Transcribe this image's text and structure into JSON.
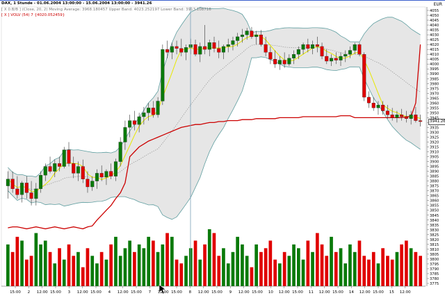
{
  "title_line": "DAX, 1 Stunde - 01.06.2004 13:00:00 - 15.06.2004 13:00:00 - 3941.26",
  "indicator_line": "[ X 0.B/B ] (Close, 20, 2) Moving Average: 3968.180457 Upper Band: 4023.252197 Lower Band: 3913.108716",
  "volume_line": "[ X ] VOLV (54) 7 {4020.052459}",
  "currency": "EUR",
  "last_price_label": "3941.26",
  "colors": {
    "up": "#0a7a0a",
    "down": "#e00000",
    "band_fill": "#e6e6e6",
    "band_edge": "#5f9ea0",
    "ma": "#e8e800",
    "mid": "#8a8a8a",
    "volume_line": "#cc0000",
    "cursor": "#7aa0b8",
    "grid": "#b0b0b0"
  },
  "y_axis": {
    "ticks": [
      "4055",
      "4050",
      "4045",
      "4040",
      "4035",
      "4030",
      "4025",
      "4020",
      "4015",
      "4010",
      "4005",
      "4000",
      "3995",
      "3990",
      "3985",
      "3980",
      "3975",
      "3970",
      "3965",
      "3960",
      "3955",
      "3950",
      "3945",
      "3940",
      "3935",
      "3930",
      "3925",
      "3920",
      "3915",
      "3910",
      "3905",
      "3900",
      "3895",
      "3890",
      "3885",
      "3880",
      "3875",
      "3870",
      "3865",
      "3860",
      "3855",
      "3850",
      "3845",
      "3840",
      "3835",
      "3830",
      "3825",
      "3820",
      "3815",
      "3810",
      "3805",
      "3800",
      "3795",
      "3790",
      "3785",
      "3780",
      "3775"
    ],
    "min": 3775,
    "max": 4055
  },
  "x_axis": {
    "labels": [
      "15:00",
      "2",
      "12:00",
      "15:00",
      "3",
      "12:00",
      "15:00",
      "4",
      "12:00",
      "15:00",
      "7",
      "12:00",
      "15:00",
      "8",
      "12:00",
      "15:00",
      "9",
      "12:00",
      "15:00",
      "10",
      "12:00",
      "15:00",
      "11",
      "12:00",
      "15:00",
      "14",
      "12:00",
      "15:00",
      "15",
      "12:00"
    ]
  },
  "chart_data": {
    "type": "candlestick",
    "title": "DAX, 1 Stunde - 01.06.2004 13:00:00 - 15.06.2004 13:00:00 - 3941.26",
    "candles": [
      {
        "o": 3875,
        "h": 3890,
        "l": 3862,
        "c": 3882
      },
      {
        "o": 3882,
        "h": 3890,
        "l": 3868,
        "c": 3872
      },
      {
        "o": 3872,
        "h": 3885,
        "l": 3862,
        "c": 3866
      },
      {
        "o": 3866,
        "h": 3880,
        "l": 3858,
        "c": 3878
      },
      {
        "o": 3878,
        "h": 3885,
        "l": 3862,
        "c": 3868
      },
      {
        "o": 3868,
        "h": 3880,
        "l": 3855,
        "c": 3862
      },
      {
        "o": 3862,
        "h": 3878,
        "l": 3855,
        "c": 3872
      },
      {
        "o": 3872,
        "h": 3890,
        "l": 3868,
        "c": 3886
      },
      {
        "o": 3886,
        "h": 3898,
        "l": 3880,
        "c": 3895
      },
      {
        "o": 3895,
        "h": 3905,
        "l": 3888,
        "c": 3890
      },
      {
        "o": 3890,
        "h": 3902,
        "l": 3884,
        "c": 3898
      },
      {
        "o": 3898,
        "h": 3905,
        "l": 3890,
        "c": 3895
      },
      {
        "o": 3895,
        "h": 3915,
        "l": 3893,
        "c": 3912
      },
      {
        "o": 3912,
        "h": 3920,
        "l": 3895,
        "c": 3898
      },
      {
        "o": 3898,
        "h": 3905,
        "l": 3883,
        "c": 3888
      },
      {
        "o": 3888,
        "h": 3900,
        "l": 3880,
        "c": 3895
      },
      {
        "o": 3895,
        "h": 3902,
        "l": 3878,
        "c": 3882
      },
      {
        "o": 3882,
        "h": 3890,
        "l": 3868,
        "c": 3874
      },
      {
        "o": 3874,
        "h": 3885,
        "l": 3870,
        "c": 3880
      },
      {
        "o": 3880,
        "h": 3892,
        "l": 3872,
        "c": 3888
      },
      {
        "o": 3888,
        "h": 3896,
        "l": 3880,
        "c": 3884
      },
      {
        "o": 3884,
        "h": 3892,
        "l": 3876,
        "c": 3890
      },
      {
        "o": 3890,
        "h": 3898,
        "l": 3882,
        "c": 3885
      },
      {
        "o": 3885,
        "h": 3903,
        "l": 3880,
        "c": 3900
      },
      {
        "o": 3900,
        "h": 3925,
        "l": 3895,
        "c": 3920
      },
      {
        "o": 3920,
        "h": 3942,
        "l": 3912,
        "c": 3935
      },
      {
        "o": 3935,
        "h": 3948,
        "l": 3925,
        "c": 3942
      },
      {
        "o": 3942,
        "h": 3952,
        "l": 3932,
        "c": 3938
      },
      {
        "o": 3938,
        "h": 3950,
        "l": 3930,
        "c": 3946
      },
      {
        "o": 3946,
        "h": 3956,
        "l": 3938,
        "c": 3950
      },
      {
        "o": 3950,
        "h": 3960,
        "l": 3942,
        "c": 3955
      },
      {
        "o": 3955,
        "h": 3962,
        "l": 3945,
        "c": 3948
      },
      {
        "o": 3948,
        "h": 3966,
        "l": 3945,
        "c": 3962
      },
      {
        "o": 3962,
        "h": 4020,
        "l": 3958,
        "c": 4015
      },
      {
        "o": 4015,
        "h": 4024,
        "l": 4006,
        "c": 4012
      },
      {
        "o": 4012,
        "h": 4022,
        "l": 4005,
        "c": 4018
      },
      {
        "o": 4018,
        "h": 4024,
        "l": 4010,
        "c": 4016
      },
      {
        "o": 4016,
        "h": 4026,
        "l": 4008,
        "c": 4012
      },
      {
        "o": 4012,
        "h": 4020,
        "l": 4004,
        "c": 4017
      },
      {
        "o": 4017,
        "h": 4026,
        "l": 4010,
        "c": 4020
      },
      {
        "o": 4020,
        "h": 4025,
        "l": 4008,
        "c": 4010
      },
      {
        "o": 4010,
        "h": 4022,
        "l": 4002,
        "c": 4018
      },
      {
        "o": 4018,
        "h": 4040,
        "l": 4010,
        "c": 4015
      },
      {
        "o": 4015,
        "h": 4025,
        "l": 4008,
        "c": 4022
      },
      {
        "o": 4022,
        "h": 4028,
        "l": 4012,
        "c": 4016
      },
      {
        "o": 4016,
        "h": 4024,
        "l": 4006,
        "c": 4012
      },
      {
        "o": 4012,
        "h": 4020,
        "l": 4005,
        "c": 4018
      },
      {
        "o": 4018,
        "h": 4026,
        "l": 4012,
        "c": 4020
      },
      {
        "o": 4020,
        "h": 4028,
        "l": 4014,
        "c": 4024
      },
      {
        "o": 4024,
        "h": 4032,
        "l": 4018,
        "c": 4028
      },
      {
        "o": 4028,
        "h": 4036,
        "l": 4022,
        "c": 4030
      },
      {
        "o": 4030,
        "h": 4037,
        "l": 4025,
        "c": 4034
      },
      {
        "o": 4034,
        "h": 4038,
        "l": 4026,
        "c": 4028
      },
      {
        "o": 4028,
        "h": 4034,
        "l": 4020,
        "c": 4030
      },
      {
        "o": 4030,
        "h": 4035,
        "l": 4018,
        "c": 4020
      },
      {
        "o": 4020,
        "h": 4028,
        "l": 4008,
        "c": 4012
      },
      {
        "o": 4012,
        "h": 4018,
        "l": 4000,
        "c": 4005
      },
      {
        "o": 4005,
        "h": 4014,
        "l": 3996,
        "c": 4000
      },
      {
        "o": 4000,
        "h": 4008,
        "l": 3994,
        "c": 4004
      },
      {
        "o": 4004,
        "h": 4012,
        "l": 3996,
        "c": 4000
      },
      {
        "o": 4000,
        "h": 4010,
        "l": 3998,
        "c": 4006
      },
      {
        "o": 4006,
        "h": 4014,
        "l": 4000,
        "c": 4010
      },
      {
        "o": 4010,
        "h": 4018,
        "l": 4005,
        "c": 4015
      },
      {
        "o": 4015,
        "h": 4022,
        "l": 4010,
        "c": 4020
      },
      {
        "o": 4020,
        "h": 4026,
        "l": 4012,
        "c": 4016
      },
      {
        "o": 4016,
        "h": 4024,
        "l": 4010,
        "c": 4020
      },
      {
        "o": 4020,
        "h": 4028,
        "l": 4012,
        "c": 4018
      },
      {
        "o": 4018,
        "h": 4022,
        "l": 4005,
        "c": 4008
      },
      {
        "o": 4008,
        "h": 4015,
        "l": 4000,
        "c": 4003
      },
      {
        "o": 4003,
        "h": 4010,
        "l": 3998,
        "c": 4006
      },
      {
        "o": 4006,
        "h": 4012,
        "l": 4000,
        "c": 4004
      },
      {
        "o": 4004,
        "h": 4012,
        "l": 3998,
        "c": 4008
      },
      {
        "o": 4008,
        "h": 4014,
        "l": 4002,
        "c": 4010
      },
      {
        "o": 4010,
        "h": 4018,
        "l": 4006,
        "c": 4014
      },
      {
        "o": 4014,
        "h": 4022,
        "l": 4010,
        "c": 4020
      },
      {
        "o": 4020,
        "h": 4022,
        "l": 4008,
        "c": 4010
      },
      {
        "o": 4010,
        "h": 4012,
        "l": 3962,
        "c": 3966
      },
      {
        "o": 3966,
        "h": 3972,
        "l": 3955,
        "c": 3960
      },
      {
        "o": 3960,
        "h": 3966,
        "l": 3952,
        "c": 3955
      },
      {
        "o": 3955,
        "h": 3962,
        "l": 3948,
        "c": 3958
      },
      {
        "o": 3958,
        "h": 3962,
        "l": 3948,
        "c": 3952
      },
      {
        "o": 3952,
        "h": 3958,
        "l": 3944,
        "c": 3948
      },
      {
        "o": 3948,
        "h": 3955,
        "l": 3942,
        "c": 3945
      },
      {
        "o": 3945,
        "h": 3952,
        "l": 3940,
        "c": 3948
      },
      {
        "o": 3948,
        "h": 3954,
        "l": 3942,
        "c": 3946
      },
      {
        "o": 3946,
        "h": 3952,
        "l": 3940,
        "c": 3944
      },
      {
        "o": 3944,
        "h": 3952,
        "l": 3938,
        "c": 3948
      },
      {
        "o": 3948,
        "h": 3956,
        "l": 3940,
        "c": 3942
      },
      {
        "o": 3942,
        "h": 3948,
        "l": 3936,
        "c": 3941
      }
    ],
    "volume": [
      22,
      18,
      26,
      24,
      14,
      16,
      28,
      22,
      24,
      18,
      12,
      20,
      14,
      22,
      16,
      18,
      10,
      20,
      16,
      12,
      18,
      14,
      22,
      26,
      16,
      20,
      24,
      18,
      22,
      20,
      26,
      24,
      18,
      22,
      28,
      26,
      14,
      12,
      16,
      20,
      24,
      14,
      22,
      30,
      28,
      16,
      20,
      12,
      18,
      26,
      22,
      16,
      10,
      22,
      18,
      20,
      24,
      14,
      12,
      18,
      16,
      22,
      20,
      14,
      24,
      18,
      28,
      22,
      16,
      26,
      18,
      20,
      12,
      22,
      18,
      24,
      16,
      14,
      18,
      12,
      20,
      16,
      14,
      18,
      22,
      24,
      20,
      18,
      16
    ],
    "volume_line": [
      3832,
      3833,
      3833,
      3832,
      3831,
      3832,
      3833,
      3832,
      3831,
      3832,
      3833,
      3832,
      3831,
      3832,
      3833,
      3832,
      3831,
      3833,
      3834,
      3840,
      3845,
      3850,
      3855,
      3862,
      3868,
      3878,
      3905,
      3910,
      3915,
      3918,
      3921,
      3923,
      3925,
      3927,
      3929,
      3931,
      3933,
      3935,
      3936,
      3937,
      3938,
      3938,
      3939,
      3940,
      3940,
      3941,
      3941,
      3942,
      3942,
      3942,
      3943,
      3943,
      3943,
      3944,
      3944,
      3944,
      3944,
      3944,
      3945,
      3945,
      3945,
      3945,
      3945,
      3946,
      3946,
      3946,
      3946,
      3946,
      3946,
      3946,
      3946,
      3947,
      3947,
      3947,
      3945,
      3945,
      3945,
      3945,
      3945,
      3945,
      3945,
      3945,
      3945,
      3945,
      3945,
      3946,
      3946,
      3960,
      4020
    ]
  }
}
